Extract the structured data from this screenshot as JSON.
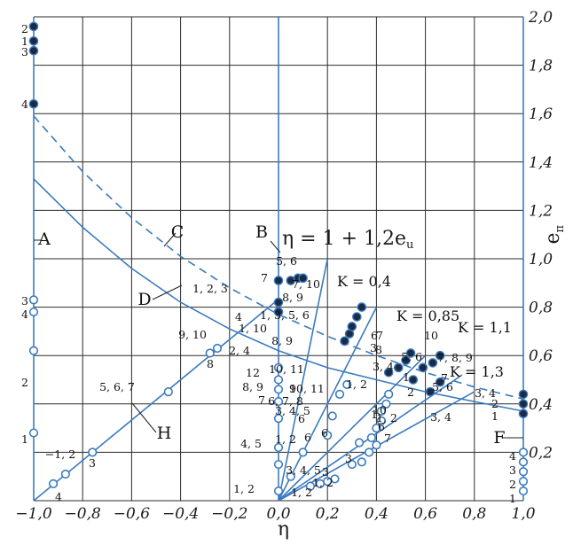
{
  "chart_data": {
    "type": "scatter",
    "xlabel": "η",
    "ylabel": "e",
    "ylabel_sub": "п",
    "xlim": [
      -1.0,
      1.0
    ],
    "ylim": [
      0,
      2.0
    ],
    "grid": true,
    "x_ticks": [
      "−1,0",
      "−0,8",
      "−0,6",
      "−0,4",
      "−0,2",
      "0,0",
      "0,2",
      "0,4",
      "0,6",
      "0,8",
      "1,0"
    ],
    "y_ticks": [
      "0,2",
      "0,4",
      "0,6",
      "0,8",
      "1,0",
      "1,2",
      "1,4",
      "1,6",
      "1,8",
      "2,0"
    ],
    "equation": "η = 1 + 1,2e",
    "equation_sub": "u",
    "color": "#3a7bbf",
    "curves": [
      {
        "name": "A",
        "points": [
          [
            -1,
            0
          ],
          [
            -1,
            2.0
          ]
        ]
      },
      {
        "name": "B",
        "points": [
          [
            0,
            0
          ],
          [
            0,
            2.0
          ]
        ]
      },
      {
        "name": "F",
        "points": [
          [
            1,
            0
          ],
          [
            1,
            2.0
          ]
        ]
      },
      {
        "name": "H",
        "points": [
          [
            -1,
            0
          ],
          [
            0,
            0.833
          ]
        ]
      },
      {
        "name": "",
        "points": [
          [
            0,
            0
          ],
          [
            0.2,
            1.0
          ]
        ]
      },
      {
        "name": "",
        "points": [
          [
            0,
            0
          ],
          [
            0.4,
            0.8
          ]
        ]
      },
      {
        "name": "",
        "points": [
          [
            0,
            0
          ],
          [
            0.6,
            0.6
          ]
        ]
      },
      {
        "name": "",
        "points": [
          [
            0,
            0
          ],
          [
            0.75,
            0.52
          ]
        ]
      },
      {
        "name": "",
        "points": [
          [
            0,
            0
          ],
          [
            0.8,
            0.45
          ]
        ]
      },
      {
        "name": "D",
        "points": [
          [
            -1,
            1.33
          ],
          [
            -0.8,
            1.13
          ],
          [
            -0.6,
            0.96
          ],
          [
            -0.4,
            0.82
          ],
          [
            -0.2,
            0.71
          ],
          [
            0,
            0.62
          ],
          [
            0.2,
            0.55
          ],
          [
            0.4,
            0.5
          ],
          [
            0.6,
            0.45
          ],
          [
            0.8,
            0.41
          ],
          [
            1,
            0.37
          ]
        ]
      },
      {
        "name": "C",
        "points": [
          [
            -1,
            1.59
          ],
          [
            -0.8,
            1.36
          ],
          [
            -0.6,
            1.17
          ],
          [
            -0.4,
            1.01
          ],
          [
            -0.2,
            0.88
          ],
          [
            0,
            0.77
          ],
          [
            0.2,
            0.68
          ],
          [
            0.4,
            0.6
          ],
          [
            0.6,
            0.53
          ],
          [
            0.8,
            0.47
          ],
          [
            1,
            0.42
          ]
        ],
        "style": "dashed"
      }
    ],
    "filled_points": [
      [
        -1,
        1.96
      ],
      [
        -1,
        1.9
      ],
      [
        -1,
        1.86
      ],
      [
        -1,
        1.64
      ],
      [
        0,
        0.91
      ],
      [
        0,
        0.82
      ],
      [
        0,
        0.78
      ],
      [
        0.05,
        0.91
      ],
      [
        0.08,
        0.92
      ],
      [
        0.1,
        0.92
      ],
      [
        0.27,
        0.66
      ],
      [
        0.29,
        0.69
      ],
      [
        0.3,
        0.72
      ],
      [
        0.32,
        0.76
      ],
      [
        0.34,
        0.8
      ],
      [
        0.45,
        0.53
      ],
      [
        0.49,
        0.55
      ],
      [
        0.52,
        0.58
      ],
      [
        0.54,
        0.61
      ],
      [
        0.55,
        0.5
      ],
      [
        0.59,
        0.55
      ],
      [
        0.63,
        0.57
      ],
      [
        0.66,
        0.6
      ],
      [
        0.62,
        0.45
      ],
      [
        0.66,
        0.49
      ],
      [
        1,
        0.44
      ],
      [
        1,
        0.4
      ],
      [
        1,
        0.36
      ]
    ],
    "open_points": [
      [
        -1,
        0.83
      ],
      [
        -1,
        0.78
      ],
      [
        -1,
        0.62
      ],
      [
        -1,
        0.28
      ],
      [
        -0.92,
        0.07
      ],
      [
        -0.87,
        0.11
      ],
      [
        -0.76,
        0.2
      ],
      [
        -0.45,
        0.45
      ],
      [
        -0.28,
        0.61
      ],
      [
        -0.25,
        0.63
      ],
      [
        0,
        0.04
      ],
      [
        0,
        0.15
      ],
      [
        0,
        0.22
      ],
      [
        0,
        0.34
      ],
      [
        0,
        0.41
      ],
      [
        0,
        0.46
      ],
      [
        0,
        0.5
      ],
      [
        0,
        0.55
      ],
      [
        0.05,
        0.1
      ],
      [
        0.1,
        0.2
      ],
      [
        0.13,
        0.06
      ],
      [
        0.17,
        0.07
      ],
      [
        0.2,
        0.08
      ],
      [
        0.23,
        0.09
      ],
      [
        0.2,
        0.27
      ],
      [
        0.22,
        0.35
      ],
      [
        0.25,
        0.44
      ],
      [
        0.28,
        0.48
      ],
      [
        0.3,
        0.15
      ],
      [
        0.34,
        0.16
      ],
      [
        0.37,
        0.2
      ],
      [
        0.4,
        0.23
      ],
      [
        0.33,
        0.24
      ],
      [
        0.38,
        0.26
      ],
      [
        0.4,
        0.3
      ],
      [
        0.42,
        0.33
      ],
      [
        0.42,
        0.37
      ],
      [
        0.44,
        0.4
      ],
      [
        0.45,
        0.44
      ],
      [
        1,
        0.2
      ],
      [
        1,
        0.16
      ],
      [
        1,
        0.12
      ],
      [
        1,
        0.08
      ],
      [
        1,
        0.04
      ]
    ],
    "curve_labels": [
      "A",
      "B",
      "C",
      "D",
      "F",
      "H"
    ],
    "k_labels": [
      "K = 0,4",
      "K = 0,85",
      "K = 1,1",
      "K = 1,3"
    ],
    "point_labels": [
      "2",
      "1",
      "3",
      "4",
      "3",
      "4",
      "2",
      "1",
      "−1, 2",
      "3",
      "4",
      "5, 6, 7",
      "9, 10",
      "8",
      "2, 4",
      "5, 6",
      "7",
      "1, 2, 3",
      "8, 9",
      "7, 10",
      "4",
      "1, 3, 5, 6",
      "1, 10",
      "8, 9",
      "12",
      "8, 9",
      "7",
      "10, 11",
      "9",
      "10, 11",
      "6, 7, 8",
      "6",
      "4, 5",
      "1, 2",
      "6",
      "3, 4, 5",
      "6",
      "3",
      "1, 2",
      "3, 4, 5",
      "1, 2",
      "3",
      "1, 2",
      "1",
      "10",
      "6",
      "7",
      "6",
      "3",
      "8",
      "7",
      "5, 6",
      "10",
      "3, 4",
      "7, 8, 9",
      "1, 2",
      "2",
      "1",
      "5, 6",
      "7",
      "1, 2",
      "3, 4",
      "3, 4",
      "2",
      "1",
      "4",
      "3",
      "2",
      "1"
    ]
  }
}
